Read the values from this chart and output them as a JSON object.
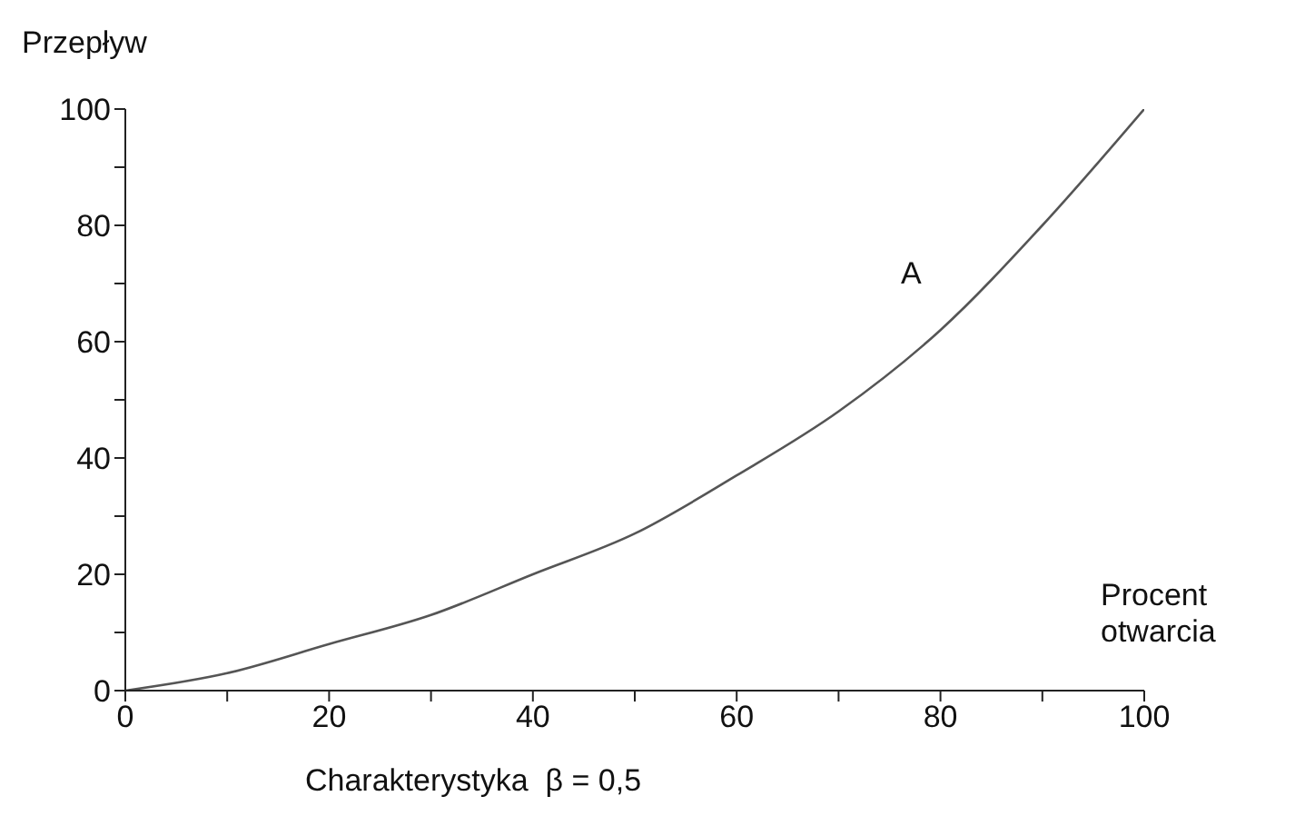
{
  "chart_data": {
    "type": "line",
    "ylabel": "Przepływ",
    "xlabel": "Procent otwarcia",
    "annotations": [
      "Charakterystyka  β = 0,5"
    ],
    "x": [
      0,
      10,
      20,
      30,
      40,
      50,
      60,
      70,
      80,
      90,
      100
    ],
    "series": [
      {
        "name": "A",
        "color": "#555555",
        "values": [
          0,
          3,
          8,
          13,
          20,
          27,
          37,
          48,
          62,
          80,
          100
        ]
      }
    ],
    "xlim": [
      0,
      100
    ],
    "ylim": [
      0,
      100
    ],
    "xticks": [
      0,
      {
        "value": 10,
        "label": null
      },
      20,
      {
        "value": 30,
        "label": null
      },
      40,
      {
        "value": 50,
        "label": null
      },
      60,
      {
        "value": 70,
        "label": null
      },
      80,
      {
        "value": 90,
        "label": null
      },
      100
    ],
    "yticks": [
      0,
      {
        "value": 10,
        "label": null
      },
      20,
      {
        "value": 30,
        "label": null
      },
      40,
      {
        "value": 50,
        "label": null
      },
      60,
      {
        "value": 70,
        "label": null
      },
      80,
      {
        "value": 90,
        "label": null
      },
      100
    ],
    "grid": false,
    "legend": false,
    "marker": "none",
    "line_style": "solid"
  }
}
